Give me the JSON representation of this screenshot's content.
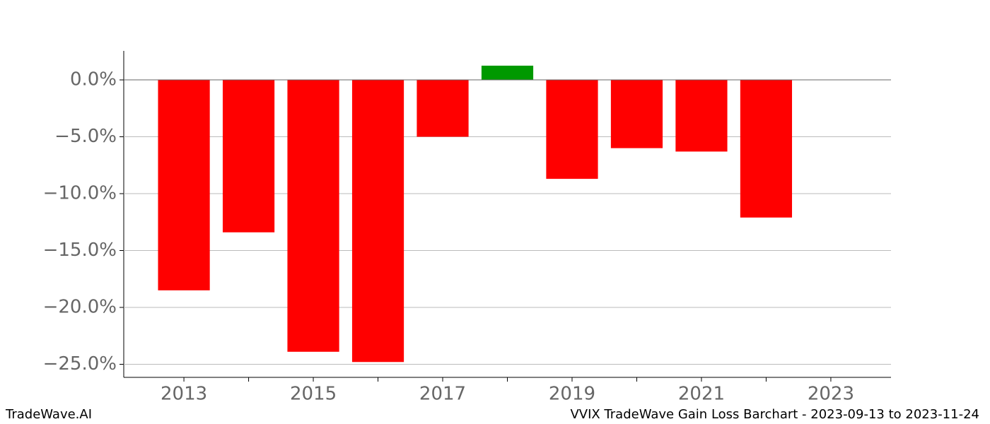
{
  "chart_data": {
    "type": "bar",
    "title": "VVIX TradeWave Gain Loss Barchart - 2023-09-13 to 2023-11-24",
    "watermark": "TradeWave.AI",
    "x": [
      2013,
      2014,
      2015,
      2016,
      2017,
      2018,
      2019,
      2020,
      2021,
      2022
    ],
    "values": [
      -18.5,
      -13.4,
      -23.9,
      -24.8,
      -5.0,
      1.25,
      -8.7,
      -6.0,
      -6.3,
      -12.1
    ],
    "colors": [
      "#ff0000",
      "#ff0000",
      "#ff0000",
      "#ff0000",
      "#ff0000",
      "#009900",
      "#ff0000",
      "#ff0000",
      "#ff0000",
      "#ff0000"
    ],
    "xlim": [
      2012.07,
      2023.93
    ],
    "xticks": [
      2013,
      2015,
      2017,
      2019,
      2021,
      2023
    ],
    "xminorticks": [
      2014,
      2016,
      2018,
      2020,
      2022
    ],
    "ylim": [
      -26.15,
      2.55
    ],
    "yticks": [
      {
        "value": 0,
        "label": "0.0%"
      },
      {
        "value": -5,
        "label": "−5.0%"
      },
      {
        "value": -10,
        "label": "−10.0%"
      },
      {
        "value": -15,
        "label": "−15.0%"
      },
      {
        "value": -20,
        "label": "−20.0%"
      },
      {
        "value": -25,
        "label": "−25.0%"
      }
    ],
    "grid": true,
    "zero_line": true
  }
}
